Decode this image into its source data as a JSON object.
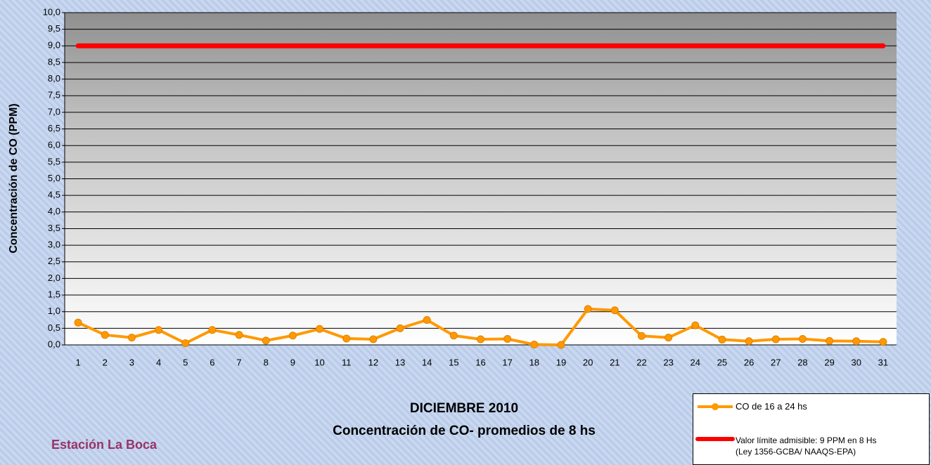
{
  "chart_data": {
    "type": "line",
    "title": "DICIEMBRE 2010",
    "subtitle": "Concentración de CO- promedios de 8 hs",
    "y_label": "Concentración de CO (PPM)",
    "annotation": "Estación La Boca",
    "categories": [
      "1",
      "2",
      "3",
      "4",
      "5",
      "6",
      "7",
      "8",
      "9",
      "10",
      "11",
      "12",
      "13",
      "14",
      "15",
      "16",
      "17",
      "18",
      "19",
      "20",
      "21",
      "22",
      "23",
      "24",
      "25",
      "26",
      "27",
      "28",
      "29",
      "30",
      "31"
    ],
    "series": [
      {
        "name": "CO de 16 a 24 hs",
        "color": "#ff9900",
        "values": [
          0.67,
          0.3,
          0.22,
          0.45,
          0.05,
          0.45,
          0.3,
          0.13,
          0.28,
          0.48,
          0.19,
          0.17,
          0.5,
          0.75,
          0.28,
          0.17,
          0.18,
          0.01,
          0.0,
          1.08,
          1.04,
          0.27,
          0.22,
          0.59,
          0.16,
          0.11,
          0.17,
          0.18,
          0.12,
          0.11,
          0.09
        ]
      },
      {
        "name": "Valor límite admisible: 9 PPM en 8 Hs (Ley 1356-GCBA/ NAAQS-EPA)",
        "color": "#ff0000",
        "values": [
          9,
          9,
          9,
          9,
          9,
          9,
          9,
          9,
          9,
          9,
          9,
          9,
          9,
          9,
          9,
          9,
          9,
          9,
          9,
          9,
          9,
          9,
          9,
          9,
          9,
          9,
          9,
          9,
          9,
          9,
          9
        ]
      }
    ],
    "ylim": [
      0,
      10
    ],
    "yticks": [
      {
        "value": 0,
        "label": "0,0"
      },
      {
        "value": 0.5,
        "label": "0,5"
      },
      {
        "value": 1,
        "label": "1,0"
      },
      {
        "value": 1.5,
        "label": "1,5"
      },
      {
        "value": 2,
        "label": "2,0"
      },
      {
        "value": 2.5,
        "label": "2,5"
      },
      {
        "value": 3,
        "label": "3,0"
      },
      {
        "value": 3.5,
        "label": "3,5"
      },
      {
        "value": 4,
        "label": "4,0"
      },
      {
        "value": 4.5,
        "label": "4,5"
      },
      {
        "value": 5,
        "label": "5,0"
      },
      {
        "value": 5.5,
        "label": "5,5"
      },
      {
        "value": 6,
        "label": "6,0"
      },
      {
        "value": 6.5,
        "label": "6,5"
      },
      {
        "value": 7,
        "label": "7,0"
      },
      {
        "value": 7.5,
        "label": "7,5"
      },
      {
        "value": 8,
        "label": "8,0"
      },
      {
        "value": 8.5,
        "label": "8,5"
      },
      {
        "value": 9,
        "label": "9,0"
      },
      {
        "value": 9.5,
        "label": "9,5"
      },
      {
        "value": 10,
        "label": "10,0"
      }
    ],
    "grid": true
  }
}
